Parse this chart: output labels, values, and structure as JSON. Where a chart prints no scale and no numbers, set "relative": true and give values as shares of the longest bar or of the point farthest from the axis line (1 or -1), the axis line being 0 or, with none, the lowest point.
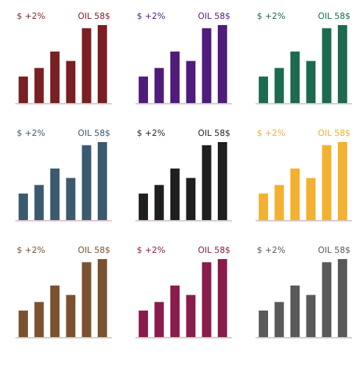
{
  "chart_data": [
    {
      "type": "bar",
      "categories": [
        null,
        null,
        null,
        null,
        null,
        null
      ],
      "relative": true,
      "annotations": [
        "$ +2%",
        "OIL 58$"
      ],
      "series": [
        {
          "color": "#7a1f22",
          "values": [
            0.34,
            0.45,
            0.66,
            0.54,
            0.96,
            1
          ]
        }
      ]
    },
    {
      "type": "bar",
      "categories": [
        null,
        null,
        null,
        null,
        null,
        null
      ],
      "relative": true,
      "annotations": [
        "$ +2%",
        "OIL 58$"
      ],
      "series": [
        {
          "color": "#4f1c7c",
          "values": [
            0.34,
            0.45,
            0.66,
            0.54,
            0.96,
            1
          ]
        }
      ]
    },
    {
      "type": "bar",
      "categories": [
        null,
        null,
        null,
        null,
        null,
        null
      ],
      "relative": true,
      "annotations": [
        "$ +2%",
        "OIL 58$"
      ],
      "series": [
        {
          "color": "#1d6b4e",
          "values": [
            0.34,
            0.45,
            0.66,
            0.54,
            0.96,
            1
          ]
        }
      ]
    },
    {
      "type": "bar",
      "categories": [
        null,
        null,
        null,
        null,
        null,
        null
      ],
      "relative": true,
      "annotations": [
        "$ +2%",
        "OIL 58$"
      ],
      "series": [
        {
          "color": "#3b5a70",
          "values": [
            0.34,
            0.45,
            0.66,
            0.54,
            0.96,
            1
          ]
        }
      ]
    },
    {
      "type": "bar",
      "categories": [
        null,
        null,
        null,
        null,
        null,
        null
      ],
      "relative": true,
      "annotations": [
        "$ +2%",
        "OIL 58$"
      ],
      "series": [
        {
          "color": "#1f1f1f",
          "values": [
            0.34,
            0.45,
            0.66,
            0.54,
            0.96,
            1
          ]
        }
      ]
    },
    {
      "type": "bar",
      "categories": [
        null,
        null,
        null,
        null,
        null,
        null
      ],
      "relative": true,
      "annotations": [
        "$ +2%",
        "OIL 58$"
      ],
      "series": [
        {
          "color": "#f2b12e",
          "values": [
            0.34,
            0.45,
            0.66,
            0.54,
            0.96,
            1
          ]
        }
      ]
    },
    {
      "type": "bar",
      "categories": [
        null,
        null,
        null,
        null,
        null,
        null
      ],
      "relative": true,
      "annotations": [
        "$ +2%",
        "OIL 58$"
      ],
      "series": [
        {
          "color": "#7a5232",
          "values": [
            0.34,
            0.45,
            0.66,
            0.54,
            0.96,
            1
          ]
        }
      ]
    },
    {
      "type": "bar",
      "categories": [
        null,
        null,
        null,
        null,
        null,
        null
      ],
      "relative": true,
      "annotations": [
        "$ +2%",
        "OIL 58$"
      ],
      "series": [
        {
          "color": "#8a1c4c",
          "values": [
            0.34,
            0.45,
            0.66,
            0.54,
            0.96,
            1
          ]
        }
      ]
    },
    {
      "type": "bar",
      "categories": [
        null,
        null,
        null,
        null,
        null,
        null
      ],
      "relative": true,
      "annotations": [
        "$ +2%",
        "OIL 58$"
      ],
      "series": [
        {
          "color": "#595959",
          "values": [
            0.34,
            0.45,
            0.66,
            0.54,
            0.96,
            1
          ]
        }
      ]
    }
  ]
}
